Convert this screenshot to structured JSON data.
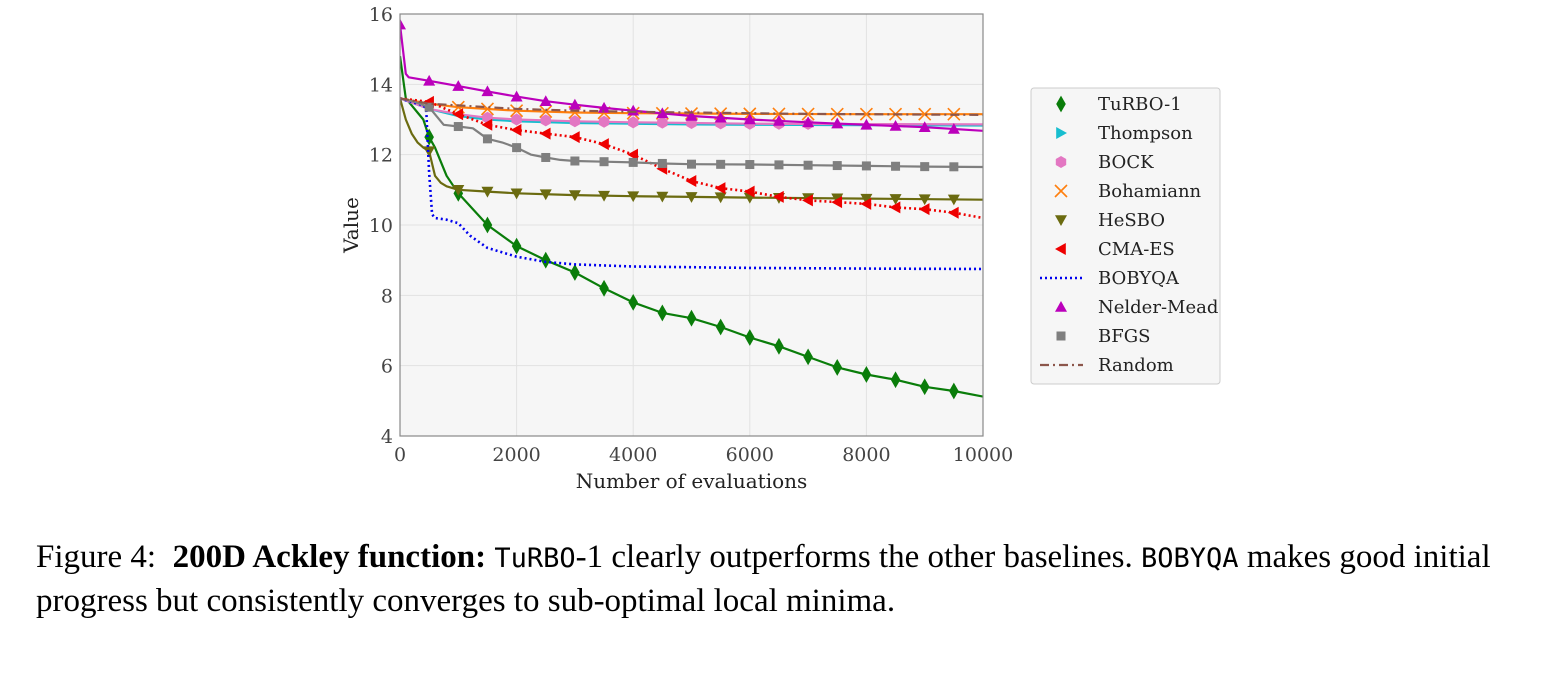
{
  "chart_data": {
    "type": "line",
    "xlabel": "Number of evaluations",
    "ylabel": "Value",
    "xlim": [
      0,
      10000
    ],
    "ylim": [
      4,
      16
    ],
    "xticks": [
      "0",
      "2000",
      "4000",
      "6000",
      "8000",
      "10000"
    ],
    "yticks": [
      "4",
      "6",
      "8",
      "10",
      "12",
      "14",
      "16"
    ],
    "grid": true,
    "legend_position": "outside-right",
    "series": [
      {
        "name": "TuRBO-1",
        "color": "#0a7d0a",
        "line": "solid",
        "marker": "diamond",
        "x": [
          0,
          100,
          200,
          300,
          400,
          500,
          600,
          800,
          1000,
          1500,
          2000,
          2500,
          3000,
          3500,
          4000,
          4500,
          5000,
          5500,
          6000,
          6500,
          7000,
          7500,
          8000,
          8500,
          9000,
          9500,
          10000
        ],
        "y": [
          14.8,
          13.6,
          13.4,
          13.2,
          13.0,
          12.5,
          12.2,
          11.4,
          10.9,
          10.0,
          9.4,
          9.0,
          8.65,
          8.2,
          7.8,
          7.5,
          7.35,
          7.1,
          6.8,
          6.55,
          6.25,
          5.95,
          5.75,
          5.6,
          5.4,
          5.28,
          5.12
        ],
        "marker_x": [
          500,
          1000,
          1500,
          2000,
          2500,
          3000,
          3500,
          4000,
          4500,
          5000,
          5500,
          6000,
          6500,
          7000,
          7500,
          8000,
          8500,
          9000,
          9500
        ]
      },
      {
        "name": "Thompson",
        "color": "#17becf",
        "line": "solid",
        "marker": "triangle-right",
        "x": [
          0,
          500,
          1000,
          1500,
          2000,
          3000,
          4000,
          5000,
          6000,
          8000,
          10000
        ],
        "y": [
          13.6,
          13.3,
          13.1,
          13.0,
          12.95,
          12.9,
          12.88,
          12.86,
          12.85,
          12.84,
          12.83
        ],
        "marker_x": []
      },
      {
        "name": "BOCK",
        "color": "#e377c2",
        "line": "solid",
        "marker": "hexagon",
        "x": [
          0,
          500,
          1000,
          1500,
          2000,
          3000,
          4000,
          5000,
          6000,
          8000,
          10000
        ],
        "y": [
          13.6,
          13.3,
          13.15,
          13.05,
          13.0,
          12.95,
          12.92,
          12.9,
          12.88,
          12.87,
          12.86
        ],
        "marker_x": [
          1500,
          2000,
          2500,
          3000,
          3500,
          4000,
          4500,
          5000,
          5500,
          6000,
          6500,
          7000
        ]
      },
      {
        "name": "Bohamiann",
        "color": "#ff7f0e",
        "line": "solid",
        "marker": "x",
        "x": [
          0,
          500,
          1000,
          2000,
          3000,
          4000,
          5000,
          6000,
          8000,
          10000
        ],
        "y": [
          13.6,
          13.45,
          13.35,
          13.25,
          13.2,
          13.18,
          13.17,
          13.16,
          13.15,
          13.15
        ],
        "marker_x": [
          1000,
          1500,
          2000,
          2500,
          3000,
          3500,
          4000,
          4500,
          5000,
          5500,
          6000,
          6500,
          7000,
          7500,
          8000,
          8500,
          9000,
          9500
        ]
      },
      {
        "name": "HeSBO",
        "color": "#6b6b10",
        "line": "solid",
        "marker": "triangle-down",
        "x": [
          0,
          100,
          200,
          300,
          400,
          500,
          600,
          700,
          800,
          1000,
          1500,
          2000,
          3000,
          4000,
          5000,
          6000,
          8000,
          10000
        ],
        "y": [
          13.6,
          13.0,
          12.6,
          12.35,
          12.2,
          12.1,
          11.4,
          11.2,
          11.1,
          11.0,
          10.95,
          10.9,
          10.85,
          10.82,
          10.8,
          10.78,
          10.75,
          10.72
        ],
        "marker_x": [
          500,
          1000,
          1500,
          2000,
          2500,
          3000,
          3500,
          4000,
          4500,
          5000,
          5500,
          6000,
          6500,
          7000,
          7500,
          8000,
          8500,
          9000,
          9500
        ]
      },
      {
        "name": "CMA-ES",
        "color": "#ee0000",
        "line": "dotted",
        "marker": "triangle-left",
        "x": [
          0,
          500,
          1000,
          1500,
          2000,
          2500,
          3000,
          3500,
          4000,
          4500,
          5000,
          5500,
          6000,
          6500,
          7000,
          7500,
          8000,
          8500,
          9000,
          9500,
          10000
        ],
        "y": [
          13.6,
          13.5,
          13.15,
          12.85,
          12.7,
          12.6,
          12.5,
          12.3,
          12.0,
          11.6,
          11.25,
          11.05,
          10.95,
          10.8,
          10.7,
          10.65,
          10.6,
          10.5,
          10.45,
          10.35,
          10.2
        ],
        "marker_x": [
          500,
          1000,
          1500,
          2000,
          2500,
          3000,
          3500,
          4000,
          4500,
          5000,
          5500,
          6000,
          6500,
          7000,
          7500,
          8000,
          8500,
          9000,
          9500
        ]
      },
      {
        "name": "BOBYQA",
        "color": "#0000ee",
        "line": "dotted",
        "marker": "none",
        "x": [
          0,
          100,
          200,
          300,
          400,
          450,
          500,
          550,
          600,
          800,
          1000,
          1200,
          1500,
          2000,
          2500,
          3000,
          4000,
          5000,
          6000,
          8000,
          10000
        ],
        "y": [
          13.6,
          13.55,
          13.5,
          13.45,
          13.4,
          13.3,
          11.5,
          10.3,
          10.2,
          10.15,
          10.05,
          9.7,
          9.35,
          9.1,
          8.95,
          8.88,
          8.82,
          8.8,
          8.78,
          8.76,
          8.75
        ],
        "marker_x": []
      },
      {
        "name": "Nelder-Mead",
        "color": "#bb00bb",
        "line": "solid",
        "marker": "triangle-up",
        "x": [
          0,
          50,
          100,
          150,
          500,
          1000,
          1500,
          2000,
          2500,
          3000,
          3500,
          4000,
          5000,
          6000,
          7000,
          8000,
          9000,
          10000
        ],
        "y": [
          15.7,
          15.0,
          14.3,
          14.2,
          14.1,
          13.95,
          13.8,
          13.65,
          13.52,
          13.42,
          13.33,
          13.25,
          13.1,
          13.0,
          12.92,
          12.85,
          12.78,
          12.68
        ],
        "marker_x": [
          0,
          500,
          1000,
          1500,
          2000,
          2500,
          3000,
          3500,
          4000,
          4500,
          5000,
          5500,
          6000,
          6500,
          7000,
          7500,
          8000,
          8500,
          9000,
          9500
        ]
      },
      {
        "name": "BFGS",
        "color": "#7f7f7f",
        "line": "solid",
        "marker": "square",
        "x": [
          0,
          250,
          500,
          750,
          1000,
          1250,
          1500,
          1750,
          2000,
          2250,
          2500,
          2750,
          3000,
          3500,
          4000,
          4500,
          5000,
          6000,
          7000,
          8000,
          9000,
          10000
        ],
        "y": [
          13.6,
          13.5,
          13.35,
          12.85,
          12.8,
          12.75,
          12.45,
          12.35,
          12.2,
          12.0,
          11.92,
          11.85,
          11.82,
          11.8,
          11.78,
          11.75,
          11.73,
          11.72,
          11.7,
          11.68,
          11.66,
          11.65
        ],
        "marker_x": [
          500,
          1000,
          1500,
          2000,
          2500,
          3000,
          3500,
          4000,
          4500,
          5000,
          5500,
          6000,
          6500,
          7000,
          7500,
          8000,
          8500,
          9000,
          9500
        ]
      },
      {
        "name": "Random",
        "color": "#8c564b",
        "line": "dashdot",
        "marker": "none",
        "x": [
          0,
          500,
          1000,
          2000,
          3000,
          4000,
          5000,
          6000,
          7000,
          8000,
          9000,
          10000
        ],
        "y": [
          13.6,
          13.45,
          13.4,
          13.3,
          13.25,
          13.22,
          13.2,
          13.18,
          13.16,
          13.15,
          13.14,
          13.13
        ],
        "marker_x": []
      }
    ]
  },
  "caption": {
    "label": "Figure 4:",
    "title": "200D Ackley function:",
    "method": "TuRBO",
    "method_suffix": "-1",
    "text1": " clearly outperforms the other baselines. ",
    "baseline": "BOBYQA",
    "text2": " makes good initial progress but consistently converges to sub-optimal local minima."
  }
}
